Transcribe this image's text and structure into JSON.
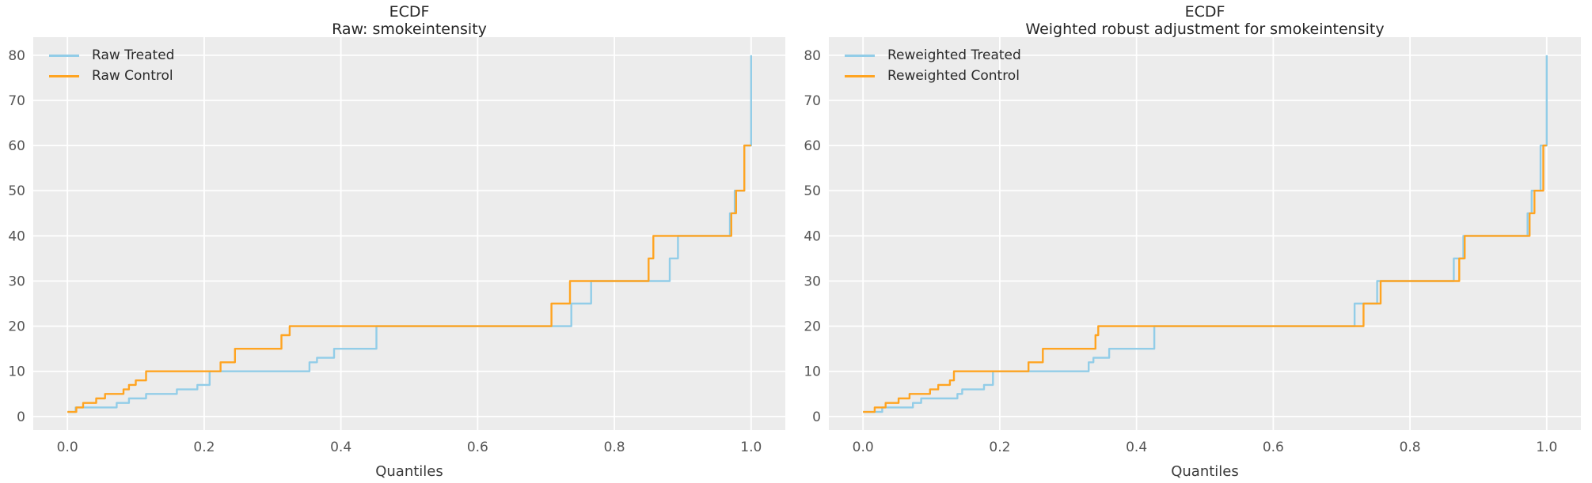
{
  "figure": {
    "background": "#ffffff",
    "plot_background": "#ECECEC",
    "grid_color": "#FFFFFF",
    "tick_text_color": "#555555",
    "title_text_color": "#262626",
    "treated_color": "#92CDE8",
    "control_color": "#FFA421"
  },
  "chart_data": [
    {
      "type": "line",
      "subtype": "step-quantile-ecdf",
      "title": "ECDF",
      "subtitle": "Raw: smokeintensity",
      "xlabel": "Quantiles",
      "ylabel": "",
      "xlim": [
        -0.05,
        1.05
      ],
      "ylim": [
        -3,
        84
      ],
      "grid": true,
      "legend_position": "upper-left",
      "xticks": [
        0.0,
        0.2,
        0.4,
        0.6,
        0.8,
        1.0
      ],
      "xtick_labels": [
        "0.0",
        "0.2",
        "0.4",
        "0.6",
        "0.8",
        "1.0"
      ],
      "yticks": [
        0,
        10,
        20,
        30,
        40,
        50,
        60,
        70,
        80
      ],
      "ytick_labels": [
        "0",
        "10",
        "20",
        "30",
        "40",
        "50",
        "60",
        "70",
        "80"
      ],
      "series": [
        {
          "name": "Raw Treated",
          "color_key": "treated_color",
          "points": [
            [
              0,
              1
            ],
            [
              0.012,
              2
            ],
            [
              0.072,
              3
            ],
            [
              0.09,
              4
            ],
            [
              0.115,
              5
            ],
            [
              0.16,
              6
            ],
            [
              0.19,
              7
            ],
            [
              0.208,
              10
            ],
            [
              0.354,
              12
            ],
            [
              0.365,
              13
            ],
            [
              0.39,
              15
            ],
            [
              0.452,
              20
            ],
            [
              0.737,
              25
            ],
            [
              0.766,
              30
            ],
            [
              0.881,
              35
            ],
            [
              0.893,
              40
            ],
            [
              0.969,
              45
            ],
            [
              0.976,
              50
            ],
            [
              0.99,
              60
            ],
            [
              1.0,
              80
            ]
          ]
        },
        {
          "name": "Raw Control",
          "color_key": "control_color",
          "points": [
            [
              0,
              1
            ],
            [
              0.013,
              2
            ],
            [
              0.023,
              3
            ],
            [
              0.042,
              4
            ],
            [
              0.055,
              5
            ],
            [
              0.082,
              6
            ],
            [
              0.09,
              7
            ],
            [
              0.1,
              8
            ],
            [
              0.115,
              10
            ],
            [
              0.224,
              12
            ],
            [
              0.245,
              15
            ],
            [
              0.313,
              18
            ],
            [
              0.325,
              20
            ],
            [
              0.708,
              25
            ],
            [
              0.735,
              30
            ],
            [
              0.85,
              35
            ],
            [
              0.857,
              40
            ],
            [
              0.971,
              45
            ],
            [
              0.978,
              50
            ],
            [
              0.99,
              60
            ],
            [
              1.0,
              60
            ]
          ]
        }
      ]
    },
    {
      "type": "line",
      "subtype": "step-quantile-ecdf",
      "title": "ECDF",
      "subtitle": "Weighted robust adjustment for smokeintensity",
      "xlabel": "Quantiles",
      "ylabel": "",
      "xlim": [
        -0.05,
        1.05
      ],
      "ylim": [
        -3,
        84
      ],
      "grid": true,
      "legend_position": "upper-left",
      "xticks": [
        0.0,
        0.2,
        0.4,
        0.6,
        0.8,
        1.0
      ],
      "xtick_labels": [
        "0.0",
        "0.2",
        "0.4",
        "0.6",
        "0.8",
        "1.0"
      ],
      "yticks": [
        0,
        10,
        20,
        30,
        40,
        50,
        60,
        70,
        80
      ],
      "ytick_labels": [
        "0",
        "10",
        "20",
        "30",
        "40",
        "50",
        "60",
        "70",
        "80"
      ],
      "series": [
        {
          "name": "Reweighted Treated",
          "color_key": "treated_color",
          "points": [
            [
              0,
              1
            ],
            [
              0.028,
              2
            ],
            [
              0.073,
              3
            ],
            [
              0.085,
              4
            ],
            [
              0.138,
              5
            ],
            [
              0.145,
              6
            ],
            [
              0.177,
              7
            ],
            [
              0.19,
              10
            ],
            [
              0.33,
              12
            ],
            [
              0.337,
              13
            ],
            [
              0.36,
              15
            ],
            [
              0.426,
              20
            ],
            [
              0.719,
              25
            ],
            [
              0.752,
              30
            ],
            [
              0.864,
              35
            ],
            [
              0.878,
              40
            ],
            [
              0.972,
              45
            ],
            [
              0.978,
              50
            ],
            [
              0.991,
              60
            ],
            [
              1.0,
              80
            ]
          ]
        },
        {
          "name": "Reweighted Control",
          "color_key": "control_color",
          "points": [
            [
              0,
              1
            ],
            [
              0.017,
              2
            ],
            [
              0.033,
              3
            ],
            [
              0.052,
              4
            ],
            [
              0.068,
              5
            ],
            [
              0.098,
              6
            ],
            [
              0.11,
              7
            ],
            [
              0.127,
              8
            ],
            [
              0.133,
              10
            ],
            [
              0.242,
              12
            ],
            [
              0.263,
              15
            ],
            [
              0.34,
              18
            ],
            [
              0.344,
              20
            ],
            [
              0.732,
              25
            ],
            [
              0.757,
              30
            ],
            [
              0.872,
              35
            ],
            [
              0.88,
              40
            ],
            [
              0.975,
              45
            ],
            [
              0.982,
              50
            ],
            [
              0.995,
              60
            ],
            [
              1.0,
              60
            ]
          ]
        }
      ]
    }
  ]
}
